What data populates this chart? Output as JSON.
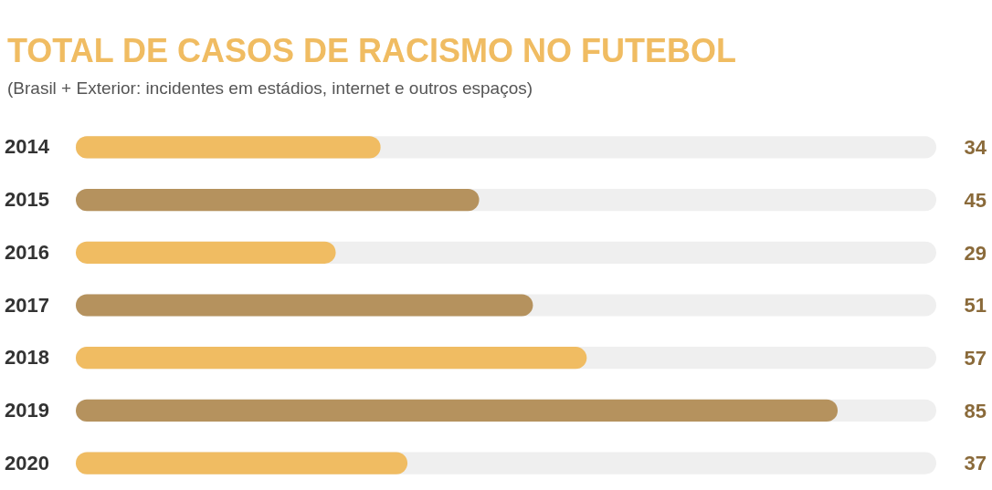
{
  "chart_data": {
    "type": "bar",
    "orientation": "horizontal",
    "title": "TOTAL DE CASOS DE RACISMO NO FUTEBOL",
    "subtitle": "(Brasil + Exterior: incidentes em  estádios, internet e outros espaços)",
    "categories": [
      "2014",
      "2015",
      "2016",
      "2017",
      "2018",
      "2019",
      "2020"
    ],
    "values": [
      34,
      45,
      29,
      51,
      57,
      85,
      37
    ],
    "colors": [
      "#f0bc62",
      "#b5925e",
      "#f0bc62",
      "#b5925e",
      "#f0bc62",
      "#b5925e",
      "#f0bc62"
    ],
    "xlim": [
      0,
      96
    ],
    "tick_labels": "y",
    "data_labels": true
  }
}
